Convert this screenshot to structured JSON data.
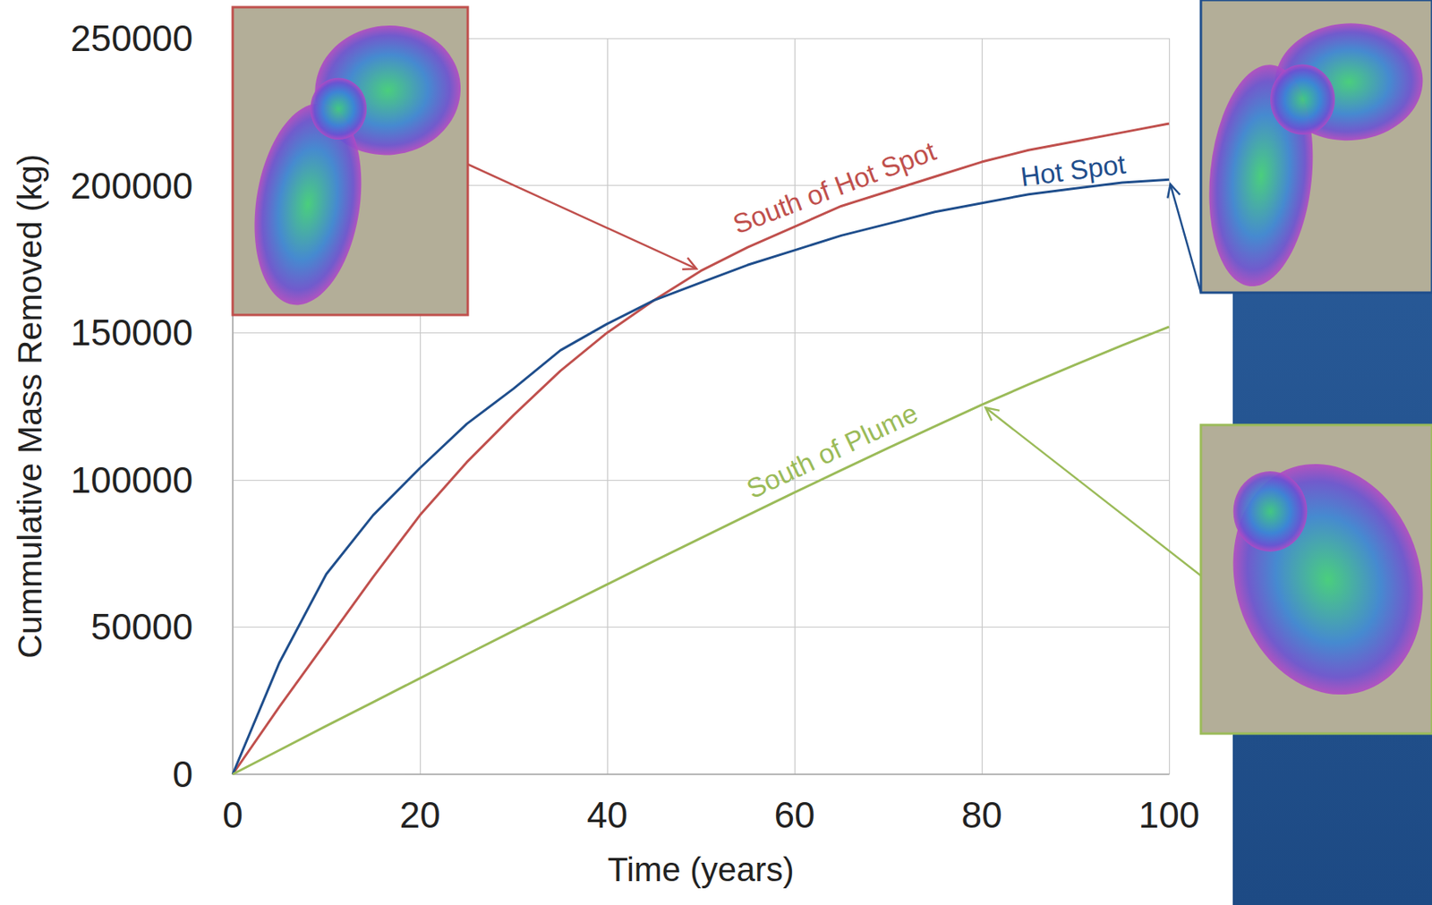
{
  "chart_data": {
    "type": "line",
    "x_label": "Time (years)",
    "y_label": "Cummulative Mass Removed (kg)",
    "x": [
      0,
      5,
      10,
      15,
      20,
      25,
      30,
      35,
      40,
      45,
      50,
      55,
      60,
      65,
      70,
      75,
      80,
      85,
      90,
      95,
      100
    ],
    "series": [
      {
        "name": "South of Hot Spot",
        "color": "#c0504d",
        "line_style": "solid",
        "values": [
          0,
          23000,
          45000,
          67000,
          88000,
          106000,
          122000,
          137000,
          150000,
          161000,
          171000,
          179000,
          186000,
          193000,
          198000,
          203000,
          208000,
          212000,
          215000,
          218000,
          221000
        ]
      },
      {
        "name": "Hot Spot",
        "color": "#1f4e8c",
        "line_style": "solid",
        "values": [
          0,
          38000,
          68000,
          88000,
          104000,
          119000,
          131000,
          144000,
          153000,
          161000,
          167000,
          173000,
          178000,
          183000,
          187000,
          191000,
          194000,
          197000,
          199000,
          201000,
          202000
        ]
      },
      {
        "name": "South of Plume",
        "color": "#9bbb59",
        "line_style": "solid",
        "values": [
          0,
          8200,
          16400,
          24500,
          32600,
          40700,
          48700,
          56600,
          64500,
          72400,
          80200,
          88000,
          95700,
          103300,
          110800,
          118200,
          125500,
          132400,
          139100,
          145700,
          152000
        ]
      }
    ],
    "xlim": [
      0,
      100
    ],
    "xticks": [
      0,
      20,
      40,
      60,
      80,
      100
    ],
    "ylim": [
      0,
      250000
    ],
    "yticks": [
      0,
      50000,
      100000,
      150000,
      200000,
      250000
    ],
    "grid": true
  }
}
